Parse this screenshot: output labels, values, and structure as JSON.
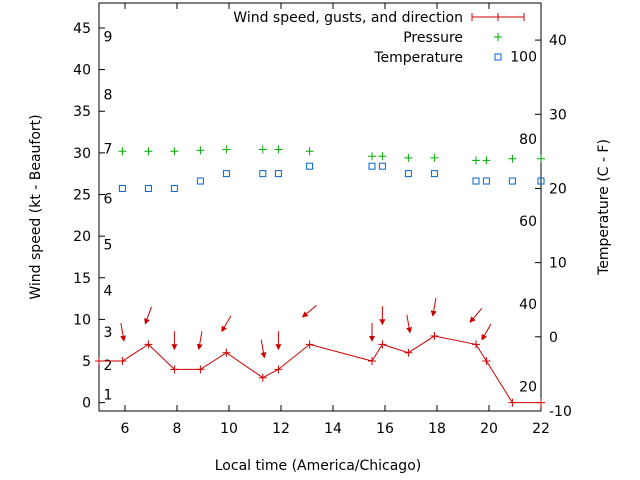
{
  "chart_data": {
    "type": "line",
    "xlabel": "Local time (America/Chicago)",
    "ylabel_left": "Wind speed (kt - Beaufort)",
    "ylabel_right": "Temperature (C - F)",
    "xlim": [
      5,
      22
    ],
    "ylim_left": [
      -1,
      48
    ],
    "ylim_right": [
      -10,
      45
    ],
    "x_ticks": [
      6,
      8,
      10,
      12,
      14,
      16,
      18,
      20,
      22
    ],
    "y_left_ticks": [
      0,
      5,
      10,
      15,
      20,
      25,
      30,
      35,
      40,
      45
    ],
    "y_right_ticks": [
      -10,
      0,
      10,
      20,
      30,
      40
    ],
    "beaufort_labels": [
      {
        "label": "1",
        "kt": 1
      },
      {
        "label": "2",
        "kt": 4.5
      },
      {
        "label": "3",
        "kt": 8.5
      },
      {
        "label": "4",
        "kt": 13.5
      },
      {
        "label": "5",
        "kt": 19
      },
      {
        "label": "6",
        "kt": 24.5
      },
      {
        "label": "7",
        "kt": 30.5
      },
      {
        "label": "8",
        "kt": 37
      },
      {
        "label": "9",
        "kt": 44
      }
    ],
    "fahrenheit_labels": [
      {
        "label": "20",
        "tempC": -6.7
      },
      {
        "label": "40",
        "tempC": 4.4
      },
      {
        "label": "60",
        "tempC": 15.6
      },
      {
        "label": "80",
        "tempC": 26.7
      },
      {
        "label": "100",
        "tempC": 37.8
      }
    ],
    "legend": {
      "placement": "top-right",
      "entries": [
        "Wind speed, gusts, and direction",
        "Pressure",
        "Temperature"
      ]
    },
    "series": [
      {
        "name": "Wind speed, gusts, and direction",
        "axis": "left",
        "color": "#cc0000",
        "x": [
          5,
          5.9,
          6.9,
          7.9,
          8.9,
          9.9,
          11.3,
          11.9,
          13.1,
          15.5,
          15.9,
          16.9,
          17.9,
          19.5,
          19.9,
          20.9,
          22
        ],
        "y": [
          5,
          5,
          7,
          4,
          4,
          6,
          3,
          4,
          7,
          5,
          7,
          6,
          8,
          7,
          5,
          0,
          0
        ]
      },
      {
        "name": "Pressure",
        "axis": "left",
        "color": "#00aa00",
        "x": [
          5.9,
          6.9,
          7.9,
          8.9,
          9.9,
          11.3,
          11.9,
          13.1,
          15.5,
          15.9,
          16.9,
          17.9,
          19.5,
          19.9,
          20.9,
          22
        ],
        "y": [
          30.2,
          30.2,
          30.2,
          30.3,
          30.4,
          30.4,
          30.4,
          30.2,
          29.6,
          29.6,
          29.4,
          29.4,
          29.1,
          29.1,
          29.3,
          29.3
        ]
      },
      {
        "name": "Temperature",
        "axis": "right",
        "color": "#0066cc",
        "x": [
          5.9,
          6.9,
          7.9,
          8.9,
          9.9,
          11.3,
          11.9,
          13.1,
          15.5,
          15.9,
          16.9,
          17.9,
          19.5,
          19.9,
          20.9,
          22
        ],
        "y": [
          20,
          20,
          20,
          21,
          22,
          22,
          22,
          23,
          23,
          23,
          22,
          22,
          21,
          21,
          21,
          21
        ]
      },
      {
        "name": "Wind direction arrows",
        "axis": "left",
        "color": "#cc0000",
        "x": [
          5.9,
          6.9,
          7.9,
          8.9,
          9.9,
          11.3,
          11.9,
          13.1,
          15.5,
          15.9,
          16.9,
          17.9,
          19.5,
          19.9
        ],
        "y": [
          8.5,
          10.5,
          7.5,
          7.5,
          9.5,
          6.5,
          7.5,
          11,
          8.5,
          10.5,
          9.5,
          11.5,
          10.5,
          8.5
        ],
        "angle_deg": [
          80,
          110,
          90,
          100,
          120,
          80,
          90,
          140,
          90,
          90,
          80,
          100,
          130,
          120
        ]
      }
    ]
  }
}
